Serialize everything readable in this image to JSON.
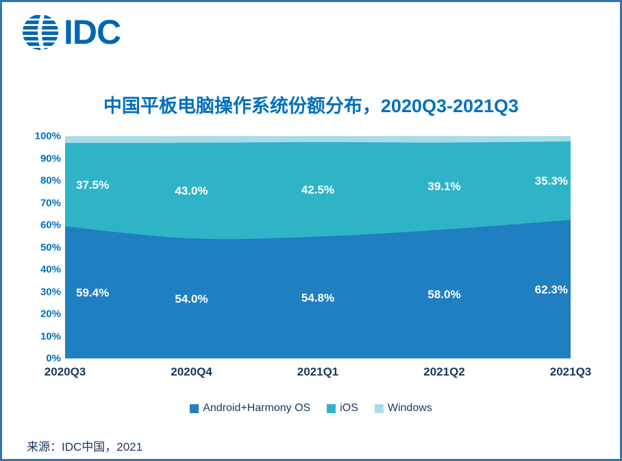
{
  "page": {
    "border_color": "#2E75B6",
    "background": "#FFFFFF"
  },
  "logo": {
    "text": "IDC",
    "color": "#0066B3"
  },
  "title": "中国平板电脑操作系统份额分布，2020Q3-2021Q3",
  "source": "来源：IDC中国，2021",
  "chart_data": {
    "type": "area",
    "stacked": true,
    "percent": true,
    "title": "中国平板电脑操作系统份额分布，2020Q3-2021Q3",
    "categories": [
      "2020Q3",
      "2020Q4",
      "2021Q1",
      "2021Q2",
      "2021Q3"
    ],
    "series": [
      {
        "name": "Android+Harmony OS",
        "color": "#1F7FC1",
        "values": [
          59.4,
          54.0,
          54.8,
          58.0,
          62.3
        ],
        "labels": [
          "59.4%",
          "54.0%",
          "54.8%",
          "58.0%",
          "62.3%"
        ]
      },
      {
        "name": "iOS",
        "color": "#2FB4C7",
        "values": [
          37.5,
          43.0,
          42.5,
          39.1,
          35.3
        ],
        "labels": [
          "37.5%",
          "43.0%",
          "42.5%",
          "39.1%",
          "35.3%"
        ]
      },
      {
        "name": "Windows",
        "color": "#A8DCE8",
        "values": [
          3.1,
          3.0,
          2.7,
          2.9,
          2.4
        ],
        "labels": []
      }
    ],
    "ylim": [
      0,
      100
    ],
    "yticks": [
      "0%",
      "10%",
      "20%",
      "30%",
      "40%",
      "50%",
      "60%",
      "70%",
      "80%",
      "90%",
      "100%"
    ],
    "grid": false,
    "legend_position": "bottom"
  }
}
